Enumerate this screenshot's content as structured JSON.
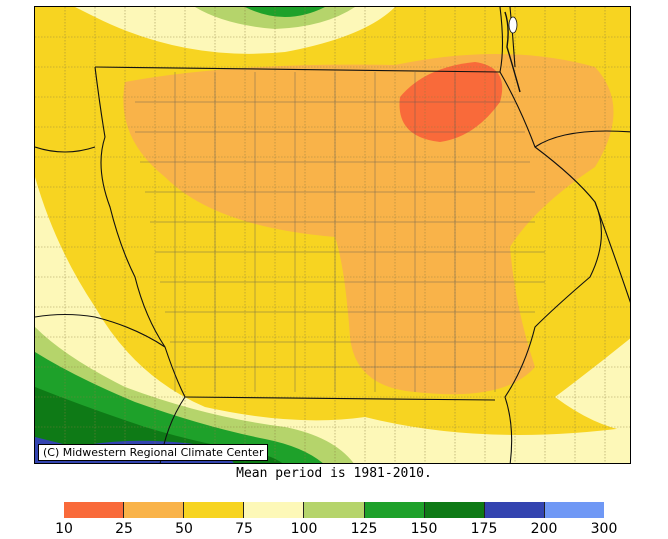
{
  "map": {
    "copyright": "(C) Midwestern Regional Climate Center",
    "caption": "Mean period is 1981-2010."
  },
  "legend": {
    "labels": [
      "10",
      "25",
      "50",
      "75",
      "100",
      "125",
      "150",
      "175",
      "200",
      "300"
    ],
    "bins": [
      {
        "range": "10-25",
        "color": "#f96a3a"
      },
      {
        "range": "25-50",
        "color": "#f9b349"
      },
      {
        "range": "50-75",
        "color": "#f7d421"
      },
      {
        "range": "75-100",
        "color": "#fdf8b8"
      },
      {
        "range": "100-125",
        "color": "#b5d46b"
      },
      {
        "range": "125-150",
        "color": "#1ea12a"
      },
      {
        "range": "150-175",
        "color": "#0e7a16"
      },
      {
        "range": "175-200",
        "color": "#3344b0"
      },
      {
        "range": "200-300",
        "color": "#6f98f5"
      }
    ]
  }
}
